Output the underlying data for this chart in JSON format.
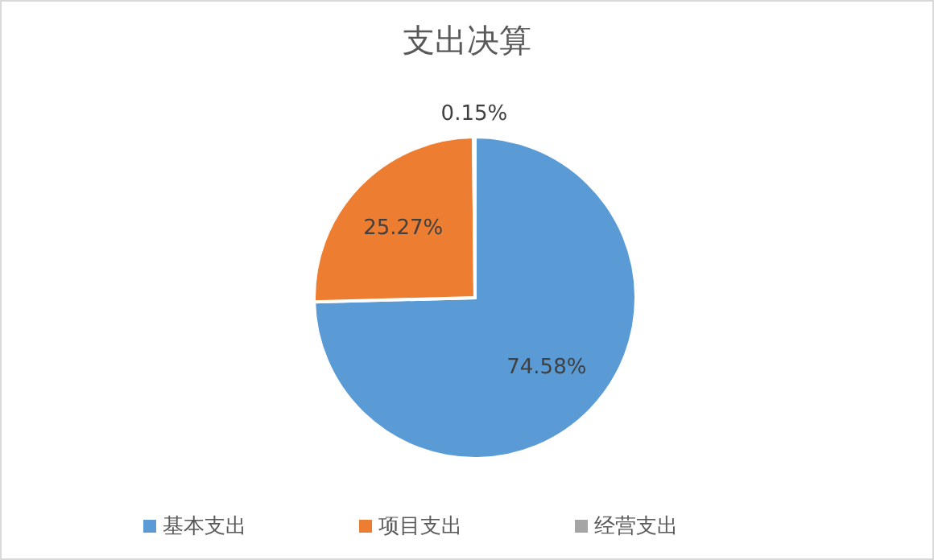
{
  "chart_data": {
    "type": "pie",
    "title": "支出决算",
    "categories": [
      "基本支出",
      "项目支出",
      "经营支出"
    ],
    "values": [
      74.58,
      25.27,
      0.15
    ],
    "colors": [
      "#5b9bd5",
      "#ed7d31",
      "#a5a5a5"
    ],
    "value_labels": [
      "74.58%",
      "25.27%",
      "0.15%"
    ],
    "legend": "bottom"
  }
}
